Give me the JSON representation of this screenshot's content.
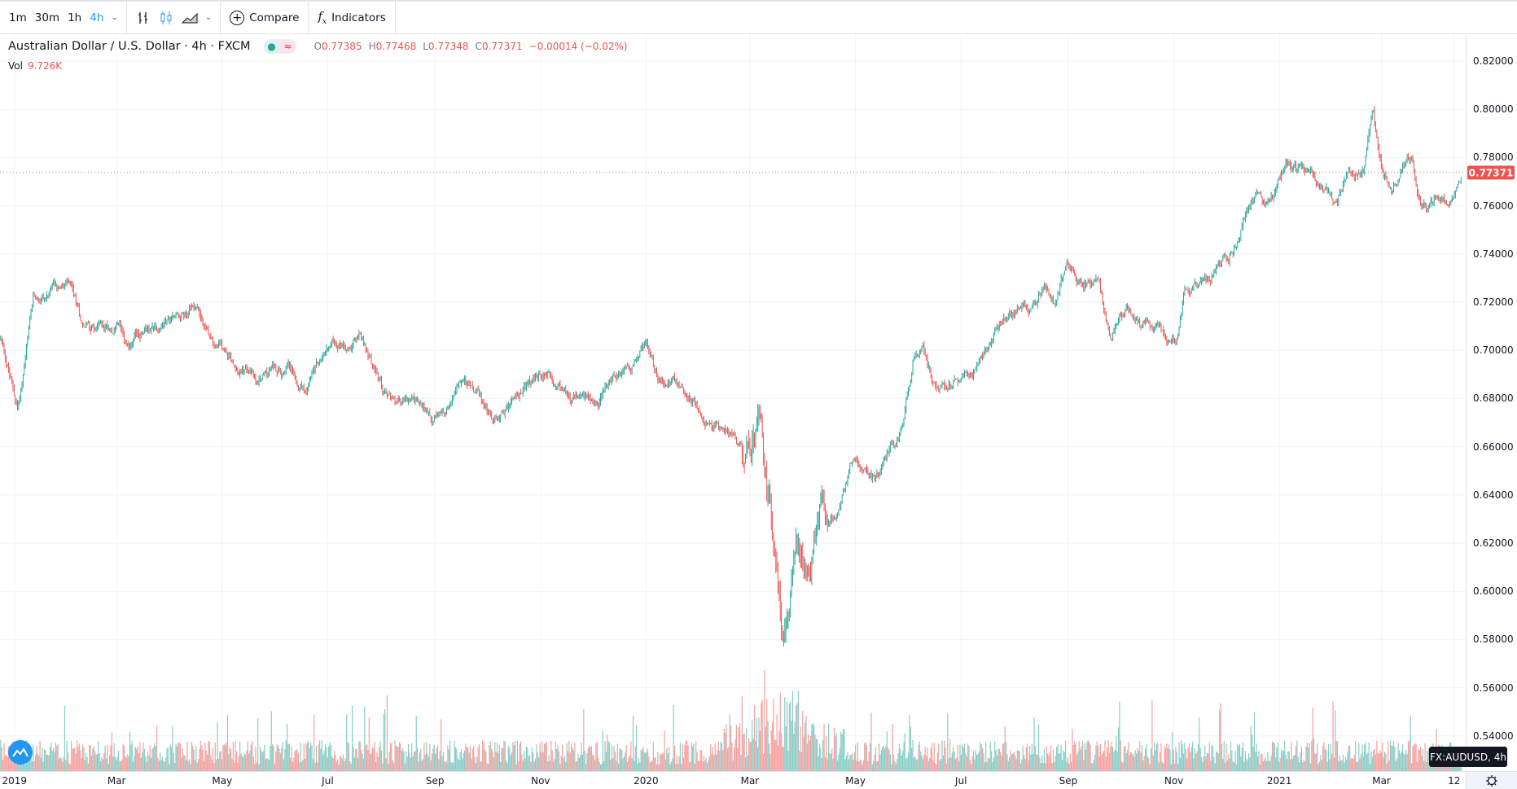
{
  "toolbar": {
    "intervals": [
      {
        "label": "1m"
      },
      {
        "label": "30m"
      },
      {
        "label": "1h"
      },
      {
        "label": "4h",
        "active": true
      }
    ],
    "compare_label": "Compare",
    "indicators_label": "Indicators",
    "accent": "#2196f3"
  },
  "legend": {
    "title": "Australian Dollar / U.S. Dollar · 4h · FXCM",
    "status_icon": "≈",
    "o_key": "O",
    "o": "0.77385",
    "h_key": "H",
    "h": "0.77468",
    "l_key": "L",
    "l": "0.77348",
    "c_key": "C",
    "c": "0.77371",
    "change": "−0.00014 (−0.02%)",
    "vol_label": "Vol",
    "vol_value": "9.726K"
  },
  "price_axis": {
    "ticks": [
      "0.82000",
      "0.80000",
      "0.78000",
      "0.76000",
      "0.74000",
      "0.72000",
      "0.70000",
      "0.68000",
      "0.66000",
      "0.64000",
      "0.62000",
      "0.60000",
      "0.58000",
      "0.56000",
      "0.54000"
    ],
    "last_price": "0.77371"
  },
  "time_axis": {
    "ticks": [
      {
        "label": "2019",
        "date": "2019-01-01"
      },
      {
        "label": "Mar",
        "date": "2019-03-01"
      },
      {
        "label": "May",
        "date": "2019-05-01"
      },
      {
        "label": "Jul",
        "date": "2019-07-01"
      },
      {
        "label": "Sep",
        "date": "2019-09-01"
      },
      {
        "label": "Nov",
        "date": "2019-11-01"
      },
      {
        "label": "2020",
        "date": "2020-01-01"
      },
      {
        "label": "Mar",
        "date": "2020-03-01"
      },
      {
        "label": "May",
        "date": "2020-05-01"
      },
      {
        "label": "Jul",
        "date": "2020-07-01"
      },
      {
        "label": "Sep",
        "date": "2020-09-01"
      },
      {
        "label": "Nov",
        "date": "2020-11-01"
      },
      {
        "label": "2021",
        "date": "2021-01-01"
      },
      {
        "label": "Mar",
        "date": "2021-03-01"
      },
      {
        "label": "12",
        "date": "2021-04-12"
      }
    ]
  },
  "tooltip": "FX:AUDUSD, 4h",
  "colors": {
    "up": "#26a69a",
    "down": "#ef5350",
    "grid": "#f0f3fa",
    "text": "#131722"
  },
  "chart_data": {
    "type": "candlestick",
    "symbol": "AUDUSD",
    "interval": "4h",
    "ylim": [
      0.53,
      0.83
    ],
    "price_path": [
      [
        "2018-12-24",
        0.705
      ],
      [
        "2019-01-03",
        0.675
      ],
      [
        "2019-01-12",
        0.72
      ],
      [
        "2019-02-01",
        0.726
      ],
      [
        "2019-02-09",
        0.71
      ],
      [
        "2019-03-01",
        0.711
      ],
      [
        "2019-03-09",
        0.703
      ],
      [
        "2019-03-23",
        0.711
      ],
      [
        "2019-04-17",
        0.718
      ],
      [
        "2019-04-27",
        0.702
      ],
      [
        "2019-05-21",
        0.688
      ],
      [
        "2019-06-07",
        0.695
      ],
      [
        "2019-06-18",
        0.686
      ],
      [
        "2019-07-04",
        0.703
      ],
      [
        "2019-07-20",
        0.706
      ],
      [
        "2019-08-04",
        0.68
      ],
      [
        "2019-08-21",
        0.677
      ],
      [
        "2019-09-04",
        0.671
      ],
      [
        "2019-09-18",
        0.688
      ],
      [
        "2019-10-05",
        0.671
      ],
      [
        "2019-10-21",
        0.683
      ],
      [
        "2019-11-04",
        0.69
      ],
      [
        "2019-11-18",
        0.681
      ],
      [
        "2019-12-01",
        0.678
      ],
      [
        "2019-12-16",
        0.687
      ],
      [
        "2020-01-01",
        0.701
      ],
      [
        "2020-01-08",
        0.689
      ],
      [
        "2020-01-24",
        0.684
      ],
      [
        "2020-02-05",
        0.672
      ],
      [
        "2020-02-19",
        0.667
      ],
      [
        "2020-02-28",
        0.652
      ],
      [
        "2020-03-06",
        0.664
      ],
      [
        "2020-03-12",
        0.635
      ],
      [
        "2020-03-18",
        0.595
      ],
      [
        "2020-03-20",
        0.575
      ],
      [
        "2020-03-25",
        0.605
      ],
      [
        "2020-03-29",
        0.62
      ],
      [
        "2020-04-03",
        0.602
      ],
      [
        "2020-04-12",
        0.635
      ],
      [
        "2020-04-20",
        0.634
      ],
      [
        "2020-04-29",
        0.654
      ],
      [
        "2020-05-12",
        0.645
      ],
      [
        "2020-05-21",
        0.658
      ],
      [
        "2020-05-29",
        0.668
      ],
      [
        "2020-06-04",
        0.697
      ],
      [
        "2020-06-09",
        0.703
      ],
      [
        "2020-06-15",
        0.685
      ],
      [
        "2020-06-26",
        0.688
      ],
      [
        "2020-07-10",
        0.695
      ],
      [
        "2020-07-21",
        0.712
      ],
      [
        "2020-07-30",
        0.717
      ],
      [
        "2020-08-13",
        0.715
      ],
      [
        "2020-08-18",
        0.725
      ],
      [
        "2020-08-24",
        0.718
      ],
      [
        "2020-08-31",
        0.738
      ],
      [
        "2020-09-07",
        0.728
      ],
      [
        "2020-09-18",
        0.73
      ],
      [
        "2020-09-26",
        0.705
      ],
      [
        "2020-10-05",
        0.718
      ],
      [
        "2020-10-16",
        0.71
      ],
      [
        "2020-10-24",
        0.712
      ],
      [
        "2020-11-02",
        0.702
      ],
      [
        "2020-11-07",
        0.725
      ],
      [
        "2020-11-21",
        0.73
      ],
      [
        "2020-12-03",
        0.74
      ],
      [
        "2020-12-11",
        0.753
      ],
      [
        "2020-12-19",
        0.762
      ],
      [
        "2020-12-28",
        0.76
      ],
      [
        "2021-01-05",
        0.777
      ],
      [
        "2021-01-19",
        0.772
      ],
      [
        "2021-02-02",
        0.761
      ],
      [
        "2021-02-10",
        0.773
      ],
      [
        "2021-02-19",
        0.776
      ],
      [
        "2021-02-24",
        0.797
      ],
      [
        "2021-03-01",
        0.775
      ],
      [
        "2021-03-07",
        0.767
      ],
      [
        "2021-03-13",
        0.777
      ],
      [
        "2021-03-19",
        0.778
      ],
      [
        "2021-03-24",
        0.76
      ],
      [
        "2021-04-02",
        0.762
      ],
      [
        "2021-04-10",
        0.761
      ],
      [
        "2021-04-16",
        0.7737
      ]
    ]
  }
}
